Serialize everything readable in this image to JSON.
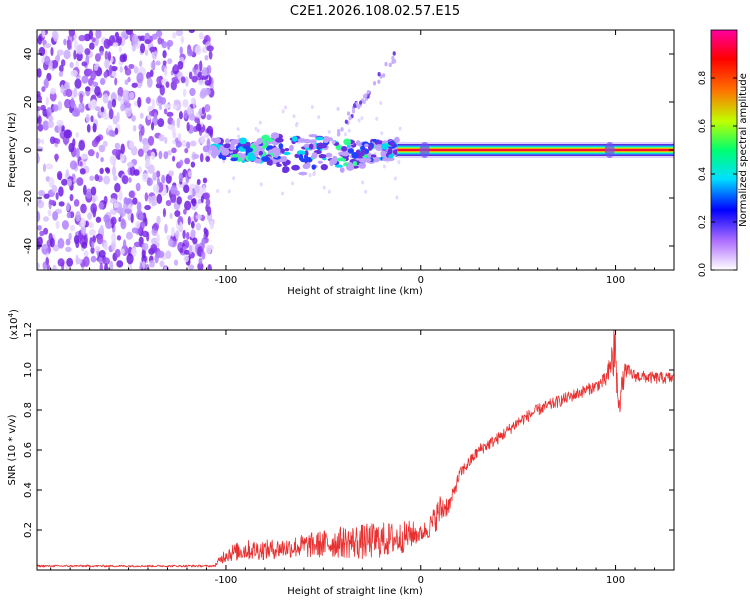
{
  "title": "C2E1.2026.108.02.57.E15",
  "chart_data": [
    {
      "type": "heatmap",
      "name": "spectrogram",
      "xlabel": "Height of straight line (km)",
      "ylabel": "Frequency (Hz)",
      "xlim": [
        -197,
        130
      ],
      "ylim": [
        -50,
        50
      ],
      "x_ticks": [
        -100,
        0,
        100
      ],
      "y_ticks": [
        40,
        20,
        0,
        -20,
        -40
      ],
      "noise_region_x": [
        -197,
        -107
      ],
      "signal_band": {
        "center_hz": 0,
        "tone_start_km": -12,
        "tone_end_km": 130
      },
      "drift_feature_x": [
        -45,
        -12
      ],
      "drift_feature_hz": [
        5,
        40
      ],
      "colorbar": {
        "label": "Normalized spectral amplitude",
        "ticks": [
          0.0,
          0.2,
          0.4,
          0.6,
          0.8
        ],
        "range": [
          0,
          1
        ],
        "colors": [
          "#ffffff",
          "#b070ff",
          "#0000ff",
          "#00e0ff",
          "#00ff70",
          "#c0ff00",
          "#ff7000",
          "#ff0000",
          "#ff00a0"
        ]
      }
    },
    {
      "type": "line",
      "name": "snr",
      "xlabel": "Height of straight line (km)",
      "ylabel": "SNR (10 * v/v)",
      "y_multiplier": "(x10",
      "y_multiplier_exp": "4",
      "y_multiplier_close": ")",
      "xlim": [
        -197,
        130
      ],
      "ylim": [
        0,
        1.2
      ],
      "x_ticks": [
        -100,
        0,
        100
      ],
      "y_ticks": [
        1.2,
        1.0,
        0.8,
        0.6,
        0.4,
        0.2
      ],
      "color": "#e83030",
      "series": {
        "x": [
          -197,
          -150,
          -106,
          -100,
          -90,
          -80,
          -70,
          -60,
          -50,
          -40,
          -30,
          -20,
          -10,
          -5,
          0,
          5,
          10,
          15,
          20,
          30,
          40,
          50,
          60,
          70,
          80,
          90,
          95,
          99,
          102,
          105,
          110,
          120,
          130
        ],
        "y": [
          0.02,
          0.02,
          0.02,
          0.08,
          0.1,
          0.1,
          0.11,
          0.12,
          0.13,
          0.14,
          0.14,
          0.15,
          0.16,
          0.18,
          0.18,
          0.22,
          0.3,
          0.33,
          0.48,
          0.6,
          0.66,
          0.74,
          0.8,
          0.84,
          0.88,
          0.92,
          0.95,
          1.05,
          0.85,
          1.0,
          0.97,
          0.96,
          0.96
        ],
        "noise": [
          0.005,
          0.005,
          0.005,
          0.04,
          0.05,
          0.05,
          0.05,
          0.06,
          0.07,
          0.08,
          0.09,
          0.09,
          0.08,
          0.07,
          0.04,
          0.06,
          0.08,
          0.04,
          0.03,
          0.03,
          0.03,
          0.03,
          0.03,
          0.03,
          0.03,
          0.03,
          0.04,
          0.1,
          0.08,
          0.04,
          0.03,
          0.03,
          0.03
        ]
      }
    }
  ]
}
